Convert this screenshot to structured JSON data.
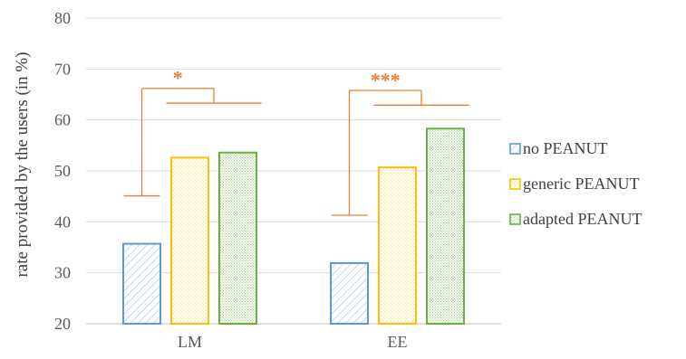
{
  "chart_data": {
    "type": "bar",
    "categories": [
      "LM",
      "EE"
    ],
    "ylabel": "rate provided by the users (in %)",
    "xlabel": "",
    "ylim": [
      20,
      80
    ],
    "yticks": [
      20,
      30,
      40,
      50,
      60,
      70,
      80
    ],
    "grid": true,
    "legend_position": "right",
    "series": [
      {
        "name": "no PEANUT",
        "values": [
          35.7,
          31.9
        ],
        "color": "#5B9BD5",
        "pattern": "diagonal-hatch"
      },
      {
        "name": "generic PEANUT",
        "values": [
          52.6,
          50.7
        ],
        "color": "#FFC000",
        "pattern": "dots"
      },
      {
        "name": "adapted PEANUT",
        "values": [
          53.6,
          58.3
        ],
        "color": "#70AD47",
        "pattern": "fine-grid"
      }
    ],
    "annotations": [
      {
        "category": "LM",
        "text": "*",
        "color": "#ED7D31"
      },
      {
        "category": "EE",
        "text": "***",
        "color": "#ED7D31"
      }
    ]
  }
}
